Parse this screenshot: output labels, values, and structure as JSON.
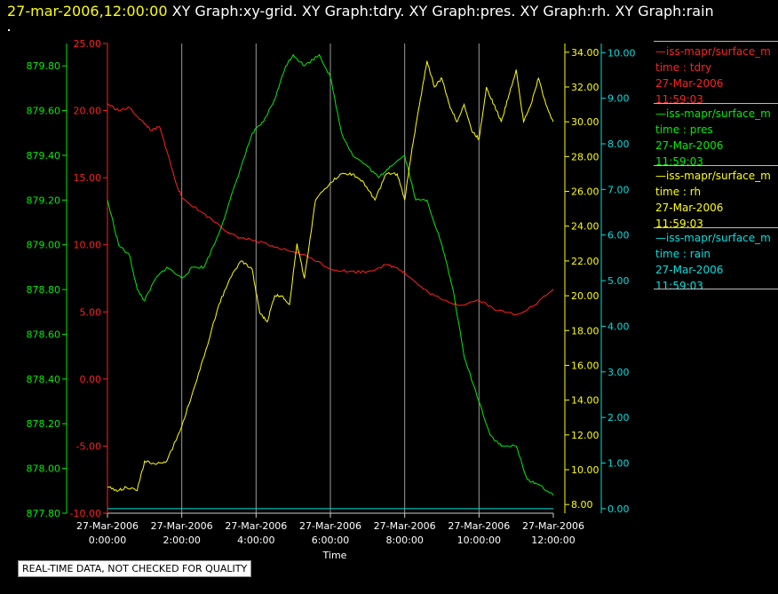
{
  "header": {
    "date_label": "27-mar-2006,12:00:00",
    "graphs_label": "XY Graph:xy-grid.  XY Graph:tdry.  XY Graph:pres.  XY Graph:rh.  XY Graph:rain"
  },
  "footer": {
    "disclaimer": "REAL-TIME DATA, NOT CHECKED FOR QUALITY"
  },
  "legend": [
    {
      "line1": "—iss-mapr/surface_m",
      "line2": "time : tdry",
      "line3": "27-Mar-2006",
      "line4": "11:59:03",
      "color": "#ff2020"
    },
    {
      "line1": "—iss-mapr/surface_m",
      "line2": "time : pres",
      "line3": "27-Mar-2006",
      "line4": "11:59:03",
      "color": "#00ee00"
    },
    {
      "line1": "—iss-mapr/surface_m",
      "line2": "time : rh",
      "line3": "27-Mar-2006",
      "line4": "11:59:03",
      "color": "#ffff00"
    },
    {
      "line1": "—iss-mapr/surface_m",
      "line2": "time : rain",
      "line3": "27-Mar-2006",
      "line4": "11:59:03",
      "color": "#00e0e0"
    }
  ],
  "chart_data": {
    "type": "line",
    "xlabel": "Time",
    "x_ticks": [
      {
        "date": "27-Mar-2006",
        "time": "0:00:00",
        "hour": 0
      },
      {
        "date": "27-Mar-2006",
        "time": "2:00:00",
        "hour": 2
      },
      {
        "date": "27-Mar-2006",
        "time": "4:00:00",
        "hour": 4
      },
      {
        "date": "27-Mar-2006",
        "time": "6:00:00",
        "hour": 6
      },
      {
        "date": "27-Mar-2006",
        "time": "8:00:00",
        "hour": 8
      },
      {
        "date": "27-Mar-2006",
        "time": "10:00:00",
        "hour": 10
      },
      {
        "date": "27-Mar-2006",
        "time": "12:00:00",
        "hour": 12
      }
    ],
    "xlim": [
      0,
      12
    ],
    "grid": "vertical lines at each x tick",
    "axes": [
      {
        "id": "pres",
        "color": "#00ee00",
        "side": "left-outer",
        "ylim": [
          877.8,
          879.9
        ],
        "ticks": [
          "877.80",
          "878.00",
          "878.20",
          "878.40",
          "878.60",
          "878.80",
          "879.00",
          "879.20",
          "879.40",
          "879.60",
          "879.80"
        ]
      },
      {
        "id": "tdry",
        "color": "#ff2020",
        "side": "left-inner",
        "ylim": [
          -10,
          25
        ],
        "ticks": [
          "-10.00",
          "-5.00",
          "0.00",
          "5.00",
          "10.00",
          "15.00",
          "20.00",
          "25.00"
        ]
      },
      {
        "id": "rh",
        "color": "#ffff00",
        "side": "right-inner",
        "ylim": [
          7.5,
          34.5
        ],
        "ticks": [
          "8.00",
          "10.00",
          "12.00",
          "14.00",
          "16.00",
          "18.00",
          "20.00",
          "22.00",
          "24.00",
          "26.00",
          "28.00",
          "30.00",
          "32.00",
          "34.00"
        ]
      },
      {
        "id": "rain",
        "color": "#00e0e0",
        "side": "right-outer",
        "ylim": [
          -0.1,
          10.2
        ],
        "ticks": [
          "0.00",
          "1.00",
          "2.00",
          "3.00",
          "4.00",
          "5.00",
          "6.00",
          "7.00",
          "8.00",
          "9.00",
          "10.00"
        ]
      }
    ],
    "series": [
      {
        "id": "tdry",
        "axis": "tdry",
        "color": "#ff2020",
        "x": [
          0,
          0.3,
          0.6,
          1.0,
          1.2,
          1.4,
          1.6,
          1.8,
          2.0,
          2.5,
          3.0,
          3.3,
          3.6,
          4.0,
          4.5,
          5.0,
          5.5,
          6.0,
          6.5,
          7.0,
          7.5,
          7.8,
          8.0,
          8.5,
          9.0,
          9.5,
          10.0,
          10.5,
          11.0,
          11.5,
          12.0
        ],
        "values": [
          20.5,
          20.0,
          20.2,
          19.0,
          18.5,
          18.8,
          17.0,
          15.0,
          13.5,
          12.5,
          11.5,
          10.8,
          10.5,
          10.3,
          9.8,
          9.5,
          9.0,
          8.2,
          8.0,
          8.0,
          8.5,
          8.3,
          7.9,
          6.7,
          5.9,
          5.5,
          5.9,
          5.1,
          4.8,
          5.5,
          6.7
        ]
      },
      {
        "id": "pres",
        "axis": "pres",
        "color": "#00ee00",
        "x": [
          0,
          0.3,
          0.6,
          0.8,
          1.0,
          1.3,
          1.6,
          2.0,
          2.3,
          2.6,
          3.0,
          3.3,
          3.6,
          3.9,
          4.2,
          4.5,
          4.8,
          5.0,
          5.3,
          5.7,
          6.0,
          6.3,
          6.6,
          7.0,
          7.3,
          7.6,
          8.0,
          8.3,
          8.6,
          9.0,
          9.3,
          9.6,
          10.0,
          10.3,
          10.6,
          11.0,
          11.3,
          11.6,
          12.0
        ],
        "values": [
          879.2,
          879.0,
          878.95,
          878.8,
          878.75,
          878.85,
          878.9,
          878.85,
          878.9,
          878.9,
          879.05,
          879.2,
          879.35,
          879.5,
          879.55,
          879.65,
          879.8,
          879.85,
          879.8,
          879.85,
          879.75,
          879.5,
          879.4,
          879.35,
          879.3,
          879.35,
          879.4,
          879.2,
          879.2,
          879.0,
          878.8,
          878.5,
          878.3,
          878.15,
          878.1,
          878.1,
          877.95,
          877.93,
          877.88
        ]
      },
      {
        "id": "rh",
        "axis": "rh",
        "color": "#ffff00",
        "x": [
          0,
          0.3,
          0.5,
          0.8,
          1.0,
          1.3,
          1.6,
          2.0,
          2.3,
          2.6,
          3.0,
          3.3,
          3.6,
          3.9,
          4.1,
          4.3,
          4.5,
          4.7,
          4.9,
          5.1,
          5.3,
          5.6,
          6.0,
          6.3,
          6.6,
          6.9,
          7.2,
          7.5,
          7.8,
          8.0,
          8.2,
          8.4,
          8.6,
          8.8,
          9.0,
          9.2,
          9.4,
          9.6,
          9.8,
          10.0,
          10.2,
          10.4,
          10.6,
          10.8,
          11.0,
          11.2,
          11.4,
          11.6,
          11.8,
          12.0
        ],
        "values": [
          9.0,
          8.8,
          9.0,
          8.8,
          10.5,
          10.3,
          10.5,
          12.5,
          14.5,
          16.5,
          19.5,
          21.0,
          22.0,
          21.5,
          19.0,
          18.5,
          20.0,
          20.0,
          19.5,
          23.0,
          21.0,
          25.5,
          26.5,
          27.0,
          27.0,
          26.5,
          25.5,
          27.0,
          27.0,
          25.5,
          28.5,
          31.0,
          33.5,
          32.0,
          32.5,
          31.0,
          30.0,
          31.0,
          29.5,
          29.0,
          32.0,
          31.0,
          30.0,
          31.5,
          33.0,
          30.0,
          31.0,
          32.5,
          31.0,
          30.0
        ]
      },
      {
        "id": "rain",
        "axis": "rain",
        "color": "#00e0e0",
        "x": [
          0,
          12
        ],
        "values": [
          0,
          0
        ]
      }
    ]
  }
}
